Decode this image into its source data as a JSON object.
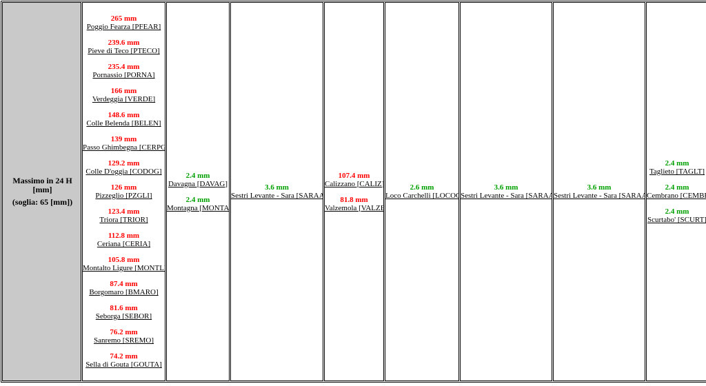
{
  "colors": {
    "above_threshold": "#ff0000",
    "below_threshold": "#00a000",
    "header_bg": "#c9c9c9"
  },
  "row_header": {
    "title": "Massimo in 24 H [mm]",
    "threshold": "(soglia: 65 [mm])"
  },
  "columns": [
    {
      "entries": [
        {
          "value": "265 mm",
          "station": "Poggio Fearza [PFEAR]",
          "status": "above"
        },
        {
          "value": "239.6 mm",
          "station": "Pieve di Teco [PTECO]",
          "status": "above"
        },
        {
          "value": "235.4 mm",
          "station": "Pornassio [PORNA]",
          "status": "above"
        },
        {
          "value": "166 mm",
          "station": "Verdeggia [VERDE]",
          "status": "above"
        },
        {
          "value": "148.6 mm",
          "station": "Colle Belenda [BELEN]",
          "status": "above"
        },
        {
          "value": "139 mm",
          "station": "Passo Ghimbegna [CERPG]",
          "status": "above"
        },
        {
          "value": "129.2 mm",
          "station": "Colle D'oggia [CODOG]",
          "status": "above"
        },
        {
          "value": "126 mm",
          "station": "Pizzeglio [PZGLI]",
          "status": "above"
        },
        {
          "value": "123.4 mm",
          "station": "Triora [TRIOR]",
          "status": "above"
        },
        {
          "value": "112.8 mm",
          "station": "Ceriana [CERIA]",
          "status": "above"
        },
        {
          "value": "105.8 mm",
          "station": "Montalto Ligure [MONTL]",
          "status": "above"
        },
        {
          "value": "87.4 mm",
          "station": "Borgomaro [BMARO]",
          "status": "above"
        },
        {
          "value": "81.6 mm",
          "station": "Seborga [SEBOR]",
          "status": "above"
        },
        {
          "value": "76.2 mm",
          "station": "Sanremo [SREMO]",
          "status": "above"
        },
        {
          "value": "74.2 mm",
          "station": "Sella di Gouta [GOUTA]",
          "status": "above"
        }
      ]
    },
    {
      "entries": [
        {
          "value": "2.4 mm",
          "station": "Davagna [DAVAG]",
          "status": "below"
        },
        {
          "value": "2.4 mm",
          "station": "Montagna [MONTA]",
          "status": "below"
        }
      ]
    },
    {
      "entries": [
        {
          "value": "3.6 mm",
          "station": "Sestri Levante - Sara [SARAA]",
          "status": "below"
        }
      ]
    },
    {
      "entries": [
        {
          "value": "107.4 mm",
          "station": "Calizzano [CALIZ]",
          "status": "above"
        },
        {
          "value": "81.8 mm",
          "station": "Valzemola [VALZE]",
          "status": "above"
        }
      ]
    },
    {
      "entries": [
        {
          "value": "2.6 mm",
          "station": "Loco Carchelli [LOCOC]",
          "status": "below"
        }
      ]
    },
    {
      "entries": [
        {
          "value": "3.6 mm",
          "station": "Sestri Levante - Sara [SARAA]",
          "status": "below"
        }
      ]
    },
    {
      "entries": [
        {
          "value": "3.6 mm",
          "station": "Sestri Levante - Sara [SARAA]",
          "status": "below"
        }
      ]
    },
    {
      "entries": [
        {
          "value": "2.4 mm",
          "station": "Taglieto [TAGLT]",
          "status": "below"
        },
        {
          "value": "2.4 mm",
          "station": "Cembrano [CEMBR]",
          "status": "below"
        },
        {
          "value": "2.4 mm",
          "station": "Scurtabo' [SCURT]",
          "status": "below"
        }
      ]
    }
  ]
}
